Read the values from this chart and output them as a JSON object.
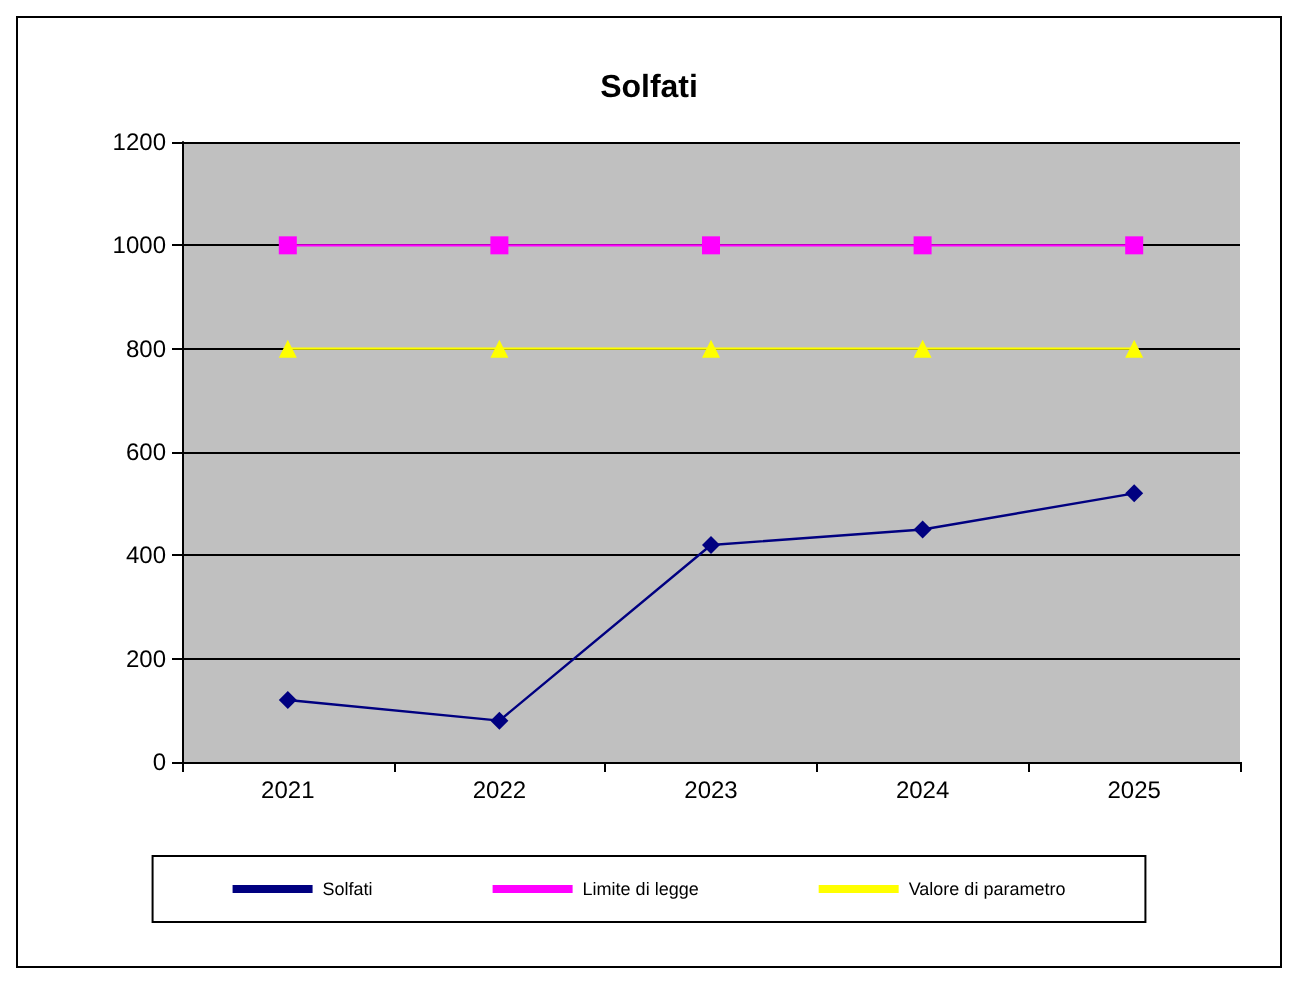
{
  "chart_data": {
    "type": "line",
    "title": "Solfati",
    "categories": [
      "2021",
      "2022",
      "2023",
      "2024",
      "2025"
    ],
    "series": [
      {
        "name": "Solfati",
        "color": "#000080",
        "marker": "diamond",
        "values": [
          120,
          80,
          420,
          450,
          520
        ]
      },
      {
        "name": "Limite di legge",
        "color": "#ff00ff",
        "marker": "square",
        "values": [
          1000,
          1000,
          1000,
          1000,
          1000
        ]
      },
      {
        "name": "Valore di parametro",
        "color": "#ffff00",
        "marker": "triangle",
        "values": [
          800,
          800,
          800,
          800,
          800
        ]
      }
    ],
    "ylim": [
      0,
      1200
    ],
    "yticks": [
      0,
      200,
      400,
      600,
      800,
      1000,
      1200
    ],
    "grid": "y",
    "legend": "bottom",
    "line_style": "solid"
  }
}
